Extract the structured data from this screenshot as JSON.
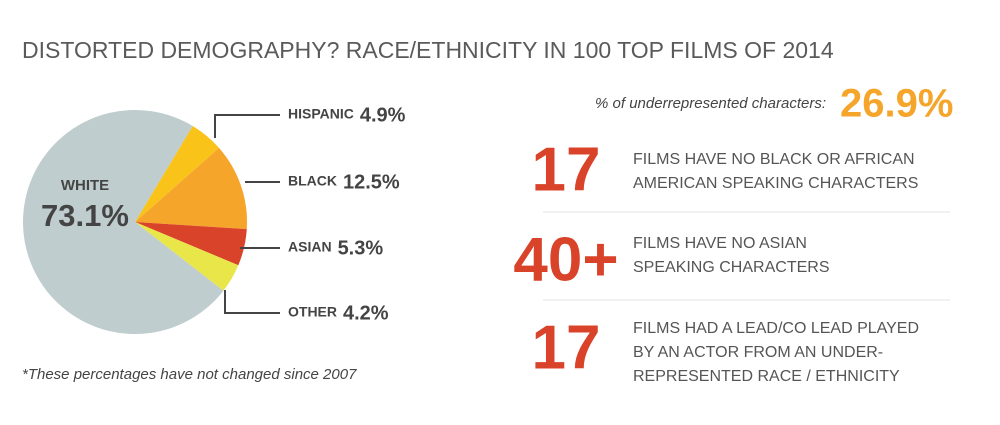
{
  "title": "DISTORTED DEMOGRAPHY? RACE/ETHNICITY IN 100 TOP FILMS OF 2014",
  "chart_data": {
    "type": "pie",
    "categories": [
      "HISPANIC",
      "BLACK",
      "ASIAN",
      "OTHER",
      "WHITE"
    ],
    "values": [
      4.9,
      12.5,
      5.3,
      4.2,
      73.1
    ],
    "value_labels": [
      "4.9%",
      "12.5%",
      "5.3%",
      "4.2%",
      "73.1%"
    ],
    "colors": [
      "#f9c31a",
      "#f6a52b",
      "#d9432a",
      "#e9e64a",
      "#c0cdcf"
    ],
    "footnote": "*These percentages have not changed since 2007"
  },
  "highlight": {
    "label": "% of underrepresented characters:",
    "value": "26.9%"
  },
  "facts": [
    {
      "number": "17",
      "lines": [
        "FILMS HAVE NO BLACK OR AFRICAN",
        "AMERICAN SPEAKING CHARACTERS"
      ]
    },
    {
      "number": "40+",
      "lines": [
        "FILMS HAVE NO ASIAN",
        "SPEAKING CHARACTERS"
      ]
    },
    {
      "number": "17",
      "lines": [
        "FILMS HAD A LEAD/CO LEAD PLAYED",
        "BY AN ACTOR FROM AN UNDER-",
        "REPRESENTED RACE / ETHNICITY"
      ]
    }
  ]
}
